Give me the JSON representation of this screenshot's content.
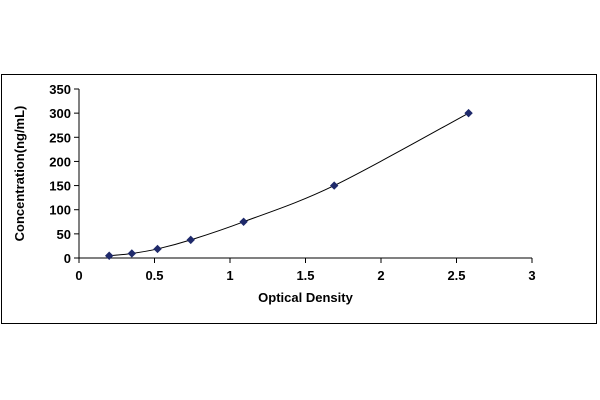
{
  "chart_data": {
    "type": "scatter",
    "title": "",
    "xlabel": "Optical Density",
    "ylabel": "Concentration(ng/mL)",
    "xlim": [
      0,
      3
    ],
    "ylim": [
      0,
      350
    ],
    "xticks": [
      0,
      0.5,
      1,
      1.5,
      2,
      2.5,
      3
    ],
    "yticks": [
      0,
      50,
      100,
      150,
      200,
      250,
      300,
      350
    ],
    "xtick_labels": [
      "0",
      "0.5",
      "1",
      "1.5",
      "2",
      "2.5",
      "3"
    ],
    "ytick_labels": [
      "0",
      "50",
      "100",
      "150",
      "200",
      "250",
      "300",
      "350"
    ],
    "grid": false,
    "legend": "none",
    "marker": "diamond",
    "marker_color": "#1f2a6b",
    "line_color": "#000000",
    "trendline": "smooth curve through points",
    "series": [
      {
        "x": [
          0.2,
          0.35,
          0.52,
          0.74,
          1.09,
          1.69,
          2.58
        ],
        "y": [
          4.69,
          9.38,
          18.75,
          37.5,
          75,
          150,
          300
        ]
      }
    ]
  }
}
